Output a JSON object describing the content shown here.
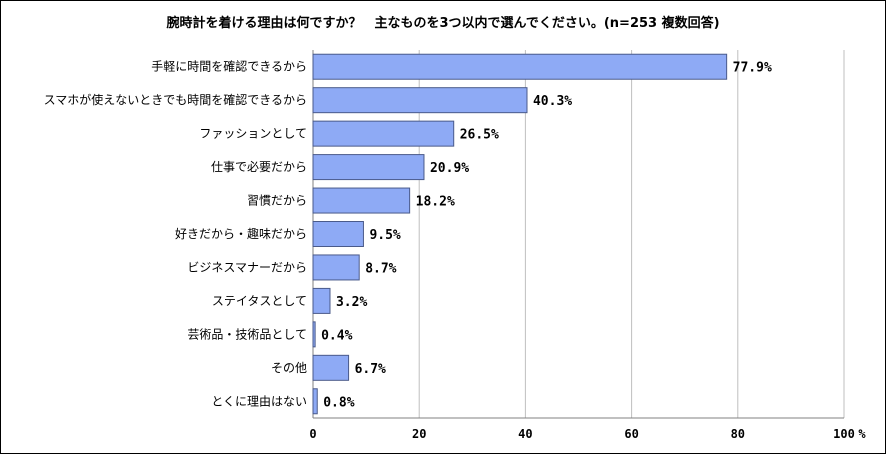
{
  "chart_data": {
    "type": "bar",
    "orientation": "horizontal",
    "title": "腕時計を着ける理由は何ですか？　主なものを3つ以内で選んでください。(n=253 複数回答)",
    "categories": [
      "手軽に時間を確認できるから",
      "スマホが使えないときでも時間を確認できるから",
      "ファッションとして",
      "仕事で必要だから",
      "習慣だから",
      "好きだから・趣味だから",
      "ビジネスマナーだから",
      "ステイタスとして",
      "芸術品・技術品として",
      "その他",
      "とくに理由はない"
    ],
    "values": [
      77.9,
      40.3,
      26.5,
      20.9,
      18.2,
      9.5,
      8.7,
      3.2,
      0.4,
      6.7,
      0.8
    ],
    "value_labels": [
      "77.9%",
      "40.3%",
      "26.5%",
      "20.9%",
      "18.2%",
      "9.5%",
      "8.7%",
      "3.2%",
      "0.4%",
      "6.7%",
      "0.8%"
    ],
    "xlim": [
      0,
      100
    ],
    "xticks": [
      "0",
      "20",
      "40",
      "60",
      "80",
      "100"
    ],
    "tick_values": [
      0,
      20,
      40,
      60,
      80,
      100
    ],
    "unit_label": "%",
    "grid": true,
    "colors": {
      "bar_fill": "#8eaaf5",
      "bar_stroke": "#4a5a8a",
      "grid": "#bfbfbf"
    }
  }
}
